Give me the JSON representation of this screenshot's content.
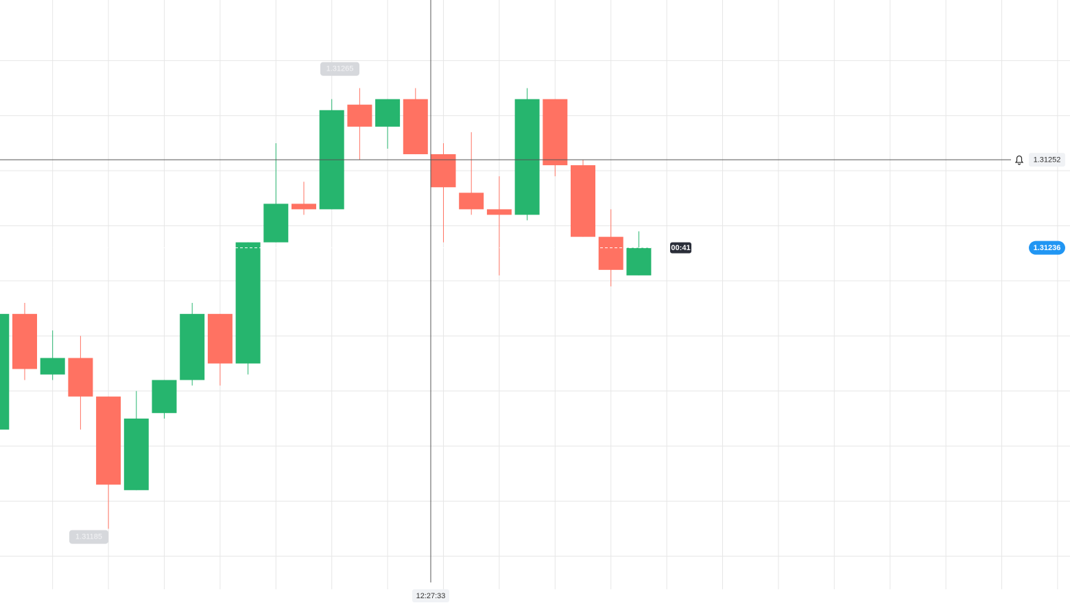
{
  "chart_data": {
    "type": "candlestick",
    "categories": [
      null,
      null,
      null,
      null,
      null,
      null,
      null,
      null,
      null,
      null,
      null,
      null,
      null,
      null,
      null,
      null,
      null,
      null,
      null,
      null,
      null,
      null,
      null,
      null
    ],
    "series": [
      {
        "open": [
          1.31203,
          1.31224,
          1.31213,
          1.31216,
          1.31209,
          1.31192,
          1.31206,
          1.31212,
          1.31224,
          1.31215,
          1.31237,
          1.31244,
          1.31243,
          1.31262,
          1.31258,
          1.31263,
          1.31253,
          1.31246,
          1.31243,
          1.31242,
          1.31263,
          1.31251,
          1.31238,
          1.31231
        ],
        "high": [
          1.31224,
          1.31226,
          1.31221,
          1.3122,
          1.31209,
          1.3121,
          1.31212,
          1.31226,
          1.31224,
          1.31237,
          1.31255,
          1.31248,
          1.31263,
          1.31265,
          1.31263,
          1.31265,
          1.31255,
          1.31257,
          1.31249,
          1.31265,
          1.31263,
          1.31252,
          1.31243,
          1.31239
        ],
        "low": [
          1.31203,
          1.31212,
          1.31212,
          1.31203,
          1.31185,
          1.31192,
          1.31205,
          1.31211,
          1.31211,
          1.31213,
          1.31237,
          1.31242,
          1.31243,
          1.31252,
          1.31254,
          1.31253,
          1.31237,
          1.31242,
          1.31231,
          1.31241,
          1.31249,
          1.31238,
          1.31229,
          1.31231
        ],
        "close": [
          1.31224,
          1.31214,
          1.31216,
          1.31209,
          1.31193,
          1.31205,
          1.31212,
          1.31224,
          1.31215,
          1.31237,
          1.31244,
          1.31243,
          1.31261,
          1.31258,
          1.31263,
          1.31253,
          1.31247,
          1.31243,
          1.31242,
          1.31263,
          1.31251,
          1.31238,
          1.31232,
          1.31236
        ]
      }
    ],
    "up_color": "#26b56e",
    "down_color": "#ff7262",
    "ylim": [
      1.31174,
      1.31281
    ],
    "yticks": [
      1.3118,
      1.3119,
      1.312,
      1.3121,
      1.3122,
      1.3123,
      1.3124,
      1.3125,
      1.3126,
      1.3127
    ],
    "grid": true,
    "max_label": 1.31265,
    "min_label": 1.31185,
    "current_price": 1.31236,
    "countdown": "00:41",
    "crosshair": {
      "price": 1.31252,
      "time": "12:27:33"
    }
  }
}
